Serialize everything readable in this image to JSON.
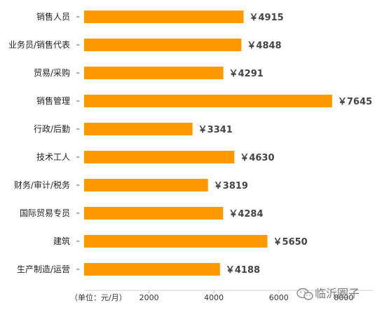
{
  "chart_data": {
    "type": "bar",
    "orientation": "horizontal",
    "categories": [
      "销售人员",
      "业务员/销售代表",
      "贸易/采购",
      "销售管理",
      "行政/后勤",
      "技术工人",
      "财务/审计/税务",
      "国际贸易专员",
      "建筑",
      "生产制造/运营"
    ],
    "values": [
      4915,
      4848,
      4291,
      7645,
      3341,
      4630,
      3819,
      4284,
      5650,
      4188
    ],
    "value_labels": [
      "￥4915",
      "￥4848",
      "￥4291",
      "￥7645",
      "￥3341",
      "￥4630",
      "￥3819",
      "￥4284",
      "￥5650",
      "￥4188"
    ],
    "xlabel": "（单位：元/月）",
    "x_ticks": [
      "2000",
      "4000",
      "6000",
      "8000"
    ],
    "x_tick_values": [
      2000,
      4000,
      6000,
      8000
    ],
    "xlim": [
      0,
      8900
    ],
    "grid": false,
    "bar_color": "#ff9900",
    "axis_color": "#cccccc"
  },
  "watermark": {
    "text": "临沂圈子",
    "icon": "wechat-icon"
  }
}
